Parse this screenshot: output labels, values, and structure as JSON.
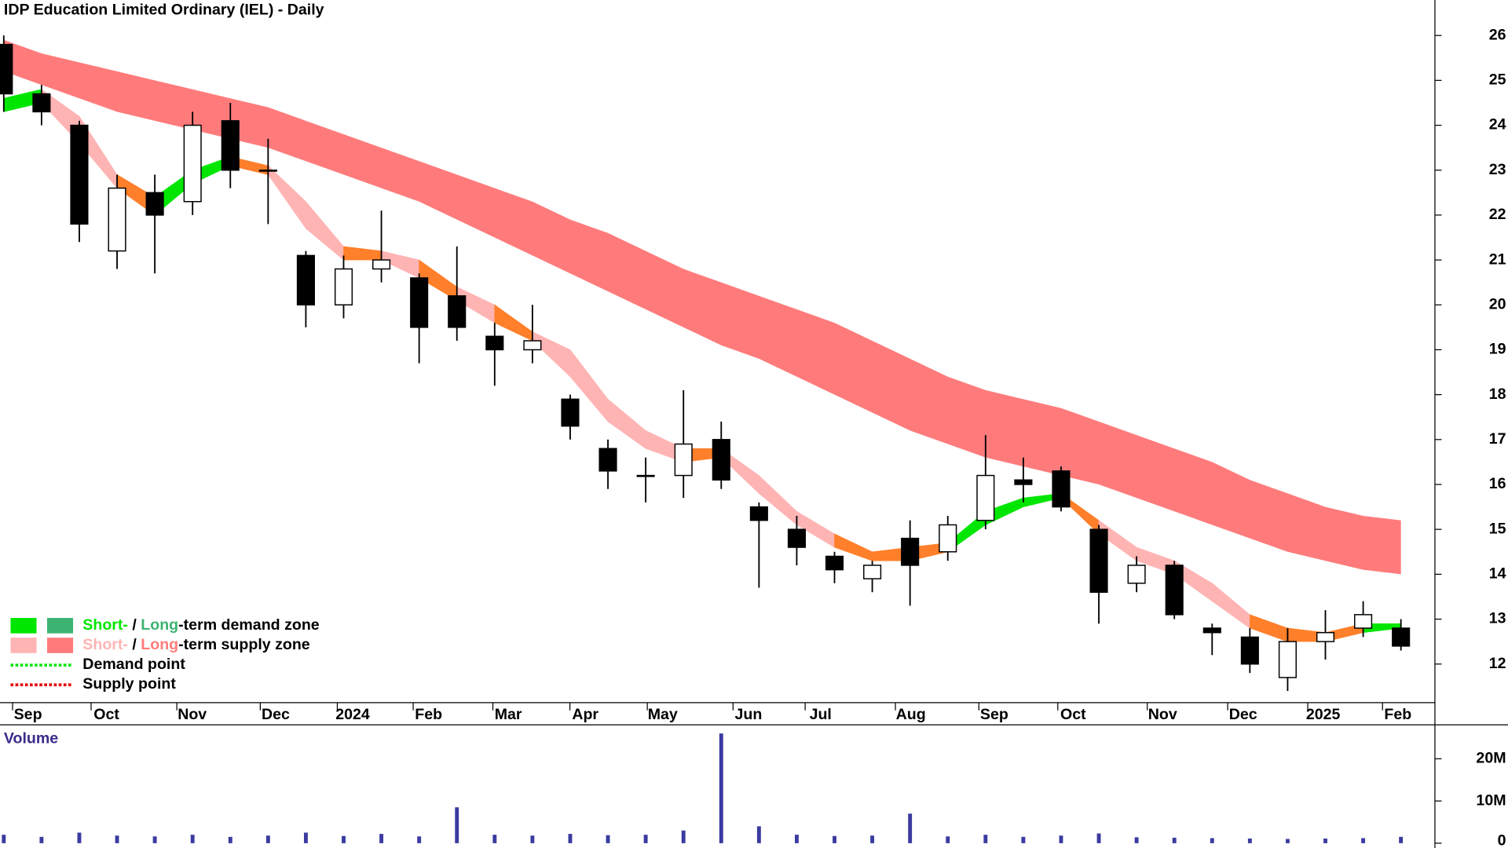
{
  "chart_data": {
    "type": "candlestick",
    "title": "IDP Education Limited Ordinary (IEL) - Daily",
    "xlim": [
      -0.1,
      37.9
    ],
    "xticks": [
      {
        "value": 0.64,
        "label": "Sep"
      },
      {
        "value": 2.72,
        "label": "Oct"
      },
      {
        "value": 4.99,
        "label": "Nov"
      },
      {
        "value": 7.2,
        "label": "Dec"
      },
      {
        "value": 9.24,
        "label": "2024"
      },
      {
        "value": 11.25,
        "label": "Feb"
      },
      {
        "value": 13.36,
        "label": "Mar"
      },
      {
        "value": 15.4,
        "label": "Apr"
      },
      {
        "value": 17.45,
        "label": "May"
      },
      {
        "value": 19.72,
        "label": "Jun"
      },
      {
        "value": 21.63,
        "label": "Jul"
      },
      {
        "value": 24.02,
        "label": "Aug"
      },
      {
        "value": 26.23,
        "label": "Sep"
      },
      {
        "value": 28.32,
        "label": "Oct"
      },
      {
        "value": 30.69,
        "label": "Nov"
      },
      {
        "value": 32.82,
        "label": "Dec"
      },
      {
        "value": 34.94,
        "label": "2025"
      },
      {
        "value": 36.92,
        "label": "Feb"
      }
    ],
    "ylim": [
      11.14,
      26.79
    ],
    "yticks": [
      12,
      13,
      14,
      15,
      16,
      17,
      18,
      19,
      20,
      21,
      22,
      23,
      24,
      25,
      26
    ],
    "open": [
      25.8,
      24.7,
      24.0,
      21.2,
      22.5,
      22.3,
      24.1,
      23.0,
      21.1,
      20.0,
      20.8,
      20.6,
      20.2,
      19.3,
      19.0,
      17.9,
      16.8,
      16.2,
      16.2,
      17.0,
      15.5,
      15.0,
      14.4,
      13.9,
      14.8,
      14.5,
      15.2,
      16.1,
      16.3,
      15.0,
      13.8,
      14.2,
      12.8,
      12.6,
      11.7,
      12.5,
      12.8,
      12.8
    ],
    "high": [
      26.0,
      24.9,
      24.1,
      22.9,
      22.9,
      24.3,
      24.5,
      23.7,
      21.2,
      21.1,
      22.1,
      20.7,
      21.3,
      19.6,
      20.0,
      18.0,
      17.0,
      16.6,
      18.1,
      17.4,
      15.6,
      15.3,
      14.5,
      14.3,
      15.2,
      15.3,
      17.1,
      16.6,
      16.4,
      15.1,
      14.4,
      14.3,
      12.9,
      12.8,
      12.8,
      13.2,
      13.4,
      13.0
    ],
    "low": [
      24.3,
      24.0,
      21.4,
      20.8,
      20.7,
      22.0,
      22.6,
      21.8,
      19.5,
      19.7,
      20.5,
      18.7,
      19.2,
      18.2,
      18.7,
      17.0,
      15.9,
      15.6,
      15.7,
      15.9,
      13.7,
      14.2,
      13.8,
      13.6,
      13.3,
      14.3,
      15.0,
      15.6,
      15.4,
      12.9,
      13.6,
      13.0,
      12.2,
      11.8,
      11.4,
      12.1,
      12.6,
      12.3
    ],
    "close": [
      24.7,
      24.3,
      21.8,
      22.6,
      22.0,
      24.0,
      23.0,
      23.0,
      20.0,
      20.8,
      21.0,
      19.5,
      19.5,
      19.0,
      19.2,
      17.3,
      16.3,
      16.2,
      16.9,
      16.1,
      15.2,
      14.6,
      14.1,
      14.2,
      14.2,
      15.1,
      16.2,
      16.0,
      15.5,
      13.6,
      14.2,
      13.1,
      12.7,
      12.0,
      12.5,
      12.7,
      13.1,
      12.4
    ],
    "long_zone": {
      "color": "#ff7b7b",
      "upper": [
        25.9,
        25.6,
        25.4,
        25.2,
        25.0,
        24.8,
        24.6,
        24.4,
        24.1,
        23.8,
        23.5,
        23.2,
        22.9,
        22.6,
        22.3,
        21.9,
        21.6,
        21.2,
        20.8,
        20.5,
        20.2,
        19.9,
        19.6,
        19.2,
        18.8,
        18.4,
        18.1,
        17.9,
        17.7,
        17.4,
        17.1,
        16.8,
        16.5,
        16.1,
        15.8,
        15.5,
        15.3,
        15.2
      ],
      "lower": [
        25.2,
        24.9,
        24.6,
        24.3,
        24.1,
        23.9,
        23.7,
        23.5,
        23.2,
        22.9,
        22.6,
        22.3,
        21.9,
        21.5,
        21.1,
        20.7,
        20.3,
        19.9,
        19.5,
        19.1,
        18.8,
        18.4,
        18.0,
        17.6,
        17.2,
        16.9,
        16.6,
        16.4,
        16.2,
        16.0,
        15.7,
        15.4,
        15.1,
        14.8,
        14.5,
        14.3,
        14.1,
        14.0
      ]
    },
    "short_zone": {
      "upper": [
        24.6,
        24.8,
        24.2,
        22.9,
        22.4,
        23.0,
        23.3,
        23.1,
        22.3,
        21.3,
        21.2,
        21.0,
        20.4,
        20.0,
        19.4,
        19.0,
        17.9,
        17.2,
        16.8,
        16.8,
        16.2,
        15.4,
        14.9,
        14.5,
        14.6,
        14.7,
        15.4,
        15.7,
        15.8,
        15.2,
        14.6,
        14.3,
        13.8,
        13.1,
        12.8,
        12.7,
        12.9,
        12.9
      ],
      "lower": [
        24.3,
        24.5,
        23.6,
        22.6,
        22.0,
        22.7,
        23.1,
        22.9,
        21.7,
        21.0,
        21.0,
        20.6,
        20.1,
        19.6,
        19.2,
        18.4,
        17.4,
        16.8,
        16.5,
        16.6,
        15.8,
        15.1,
        14.6,
        14.3,
        14.3,
        14.5,
        15.1,
        15.5,
        15.7,
        14.9,
        14.3,
        14.0,
        13.4,
        12.8,
        12.5,
        12.5,
        12.7,
        12.8
      ],
      "colors": [
        "#00e600",
        "#ffb4b4",
        "#ffb4b4",
        "#ff7f2a",
        "#00e600",
        "#00e600",
        "#ff7f2a",
        "#ffb4b4",
        "#ffb4b4",
        "#ff7f2a",
        "#ffb4b4",
        "#ff7f2a",
        "#ffb4b4",
        "#ff7f2a",
        "#ffb4b4",
        "#ffb4b4",
        "#ffb4b4",
        "#ffb4b4",
        "#ff7f2a",
        "#ffb4b4",
        "#ffb4b4",
        "#ffb4b4",
        "#ff7f2a",
        "#ff7f2a",
        "#ff7f2a",
        "#00e600",
        "#00e600",
        "#00e600",
        "#ff7f2a",
        "#ffb4b4",
        "#ffb4b4",
        "#ffb4b4",
        "#ffb4b4",
        "#ff7f2a",
        "#ff7f2a",
        "#ff7f2a",
        "#00e600"
      ]
    },
    "legend": [
      {
        "swatches": [
          "#00e600",
          "#3cb371"
        ],
        "parts": [
          {
            "text": "Short-",
            "color": "#00e600"
          },
          {
            "text": " / ",
            "color": "#000000"
          },
          {
            "text": "Long",
            "color": "#3cb371"
          },
          {
            "text": "-term demand zone",
            "color": "#000000"
          }
        ]
      },
      {
        "swatches": [
          "#ffb4b4",
          "#ff7b7b"
        ],
        "parts": [
          {
            "text": "Short-",
            "color": "#ffb4b4"
          },
          {
            "text": " / ",
            "color": "#000000"
          },
          {
            "text": "Long",
            "color": "#ff7b7b"
          },
          {
            "text": "-term supply zone",
            "color": "#000000"
          }
        ]
      },
      {
        "line": "#00e600",
        "parts": [
          {
            "text": "Demand point",
            "color": "#000000"
          }
        ]
      },
      {
        "line": "#e60000",
        "parts": [
          {
            "text": "Supply point",
            "color": "#000000"
          }
        ]
      }
    ],
    "volume": {
      "title": "Volume",
      "color": "#3a3aa0",
      "ylim": [
        0,
        27600000
      ],
      "yticks": [
        0,
        {
          "value": 10000000,
          "label": "10M"
        },
        {
          "value": 20000000,
          "label": "20M"
        }
      ],
      "values": [
        2000000,
        1500000,
        2500000,
        1800000,
        1600000,
        2000000,
        1500000,
        1800000,
        2500000,
        1700000,
        2200000,
        1600000,
        8500000,
        2000000,
        1800000,
        2200000,
        1900000,
        2000000,
        3000000,
        26000000,
        4000000,
        2000000,
        1700000,
        1800000,
        7000000,
        1600000,
        2000000,
        1500000,
        1800000,
        2300000,
        1400000,
        1300000,
        1200000,
        1100000,
        1000000,
        1100000,
        1200000,
        1500000
      ]
    }
  }
}
